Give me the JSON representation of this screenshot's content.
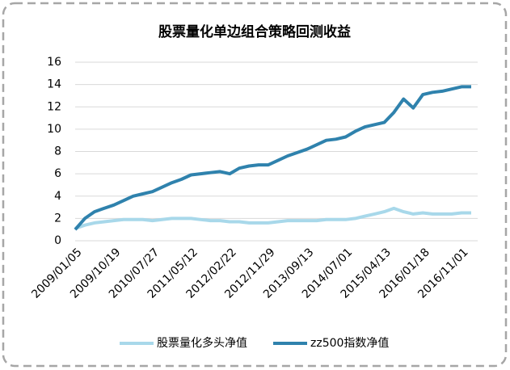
{
  "chart_data": {
    "type": "line",
    "title": "股票量化单边组合策略回测收益",
    "categories": [
      "2009/01/05",
      null,
      null,
      null,
      "2009/10/19",
      null,
      null,
      null,
      "2010/07/27",
      null,
      null,
      null,
      "2011/05/12",
      null,
      null,
      null,
      "2012/02/22",
      null,
      null,
      null,
      "2012/11/29",
      null,
      null,
      null,
      "2013/09/13",
      null,
      null,
      null,
      "2014/07/01",
      null,
      null,
      null,
      "2015/04/13",
      null,
      null,
      null,
      "2016/01/18",
      null,
      null,
      null,
      "2016/11/01",
      null
    ],
    "series": [
      {
        "name": "股票量化多头净值",
        "color": "#a8d8ea",
        "values": [
          1.1,
          1.4,
          1.6,
          1.7,
          1.8,
          1.9,
          1.9,
          1.9,
          1.8,
          1.9,
          2.0,
          2.0,
          2.0,
          1.9,
          1.8,
          1.8,
          1.7,
          1.7,
          1.6,
          1.6,
          1.6,
          1.7,
          1.8,
          1.8,
          1.8,
          1.8,
          1.9,
          1.9,
          1.9,
          2.0,
          2.2,
          2.4,
          2.6,
          2.9,
          2.6,
          2.4,
          2.5,
          2.4,
          2.4,
          2.4,
          2.5,
          2.5
        ]
      },
      {
        "name": "zz500指数净值",
        "color": "#2f82ad",
        "values": [
          1.0,
          2.0,
          2.6,
          2.9,
          3.2,
          3.6,
          4.0,
          4.2,
          4.4,
          4.8,
          5.2,
          5.5,
          5.9,
          6.0,
          6.1,
          6.2,
          6.0,
          6.5,
          6.7,
          6.8,
          6.8,
          7.2,
          7.6,
          7.9,
          8.2,
          8.6,
          9.0,
          9.1,
          9.3,
          9.8,
          10.2,
          10.4,
          10.6,
          11.5,
          12.7,
          11.9,
          13.1,
          13.3,
          13.4,
          13.6,
          13.8,
          13.8
        ]
      }
    ],
    "ylim": [
      0,
      16
    ],
    "yticks": [
      0,
      2,
      4,
      6,
      8,
      10,
      12,
      14,
      16
    ],
    "grid": true,
    "legend": "bottom"
  }
}
